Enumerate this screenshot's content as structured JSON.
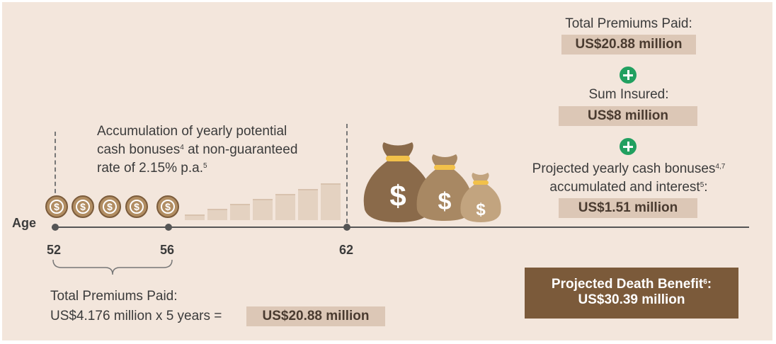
{
  "timeline": {
    "axis_label": "Age",
    "ages": [
      "52",
      "56",
      "62"
    ]
  },
  "accumulation": {
    "line1": "Accumulation of yearly potential",
    "line2_a": "cash bonuses",
    "line2_sup": "4",
    "line2_b": " at non-guaranteed",
    "line3_a": "rate of 2.15% p.a.",
    "line3_sup": "5"
  },
  "bottom_premiums": {
    "line1": "Total Premiums Paid:",
    "line2": "US$4.176 million x 5 years =",
    "total": "US$20.88 million"
  },
  "right_column": {
    "premiums_label": "Total Premiums Paid:",
    "premiums_value": "US$20.88 million",
    "sum_insured_label": "Sum Insured:",
    "sum_insured_value": "US$8 million",
    "bonus_line1_a": "Projected yearly cash bonuses",
    "bonus_line1_sup": "4,7",
    "bonus_line2_a": "accumulated and interest",
    "bonus_line2_sup": "5",
    "bonus_line2_b": ":",
    "bonus_value": "US$1.51 million"
  },
  "death_benefit": {
    "line1_a": "Projected Death Benefit",
    "line1_sup": "6",
    "line1_b": ":",
    "line2": "US$30.39 million"
  },
  "coins": {
    "symbol": "$",
    "count": 5
  },
  "bags": {
    "symbol": "$"
  },
  "colors": {
    "background": "#f3e6dc",
    "pill": "#dcc7b6",
    "plus": "#21a060",
    "death_benefit_box": "#7b5a3a",
    "bag_dark": "#8a6a4a",
    "bag_mid": "#a88863",
    "bag_light": "#c2a47f",
    "gold": "#f2c14a"
  }
}
